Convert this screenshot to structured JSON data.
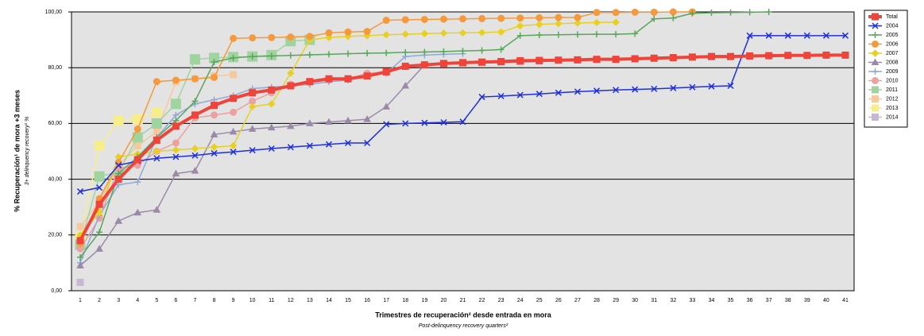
{
  "chart_data": {
    "type": "line",
    "y_label": "% Recuperación¹ de mora +3 meses",
    "y_label_en": "3+ delinquency recovery¹ %",
    "x_label": "Trimestres de recuperación² desde entrada en mora",
    "x_label_en": "Post-delinquency recovery quarters²",
    "categories": [
      "1",
      "2",
      "3",
      "4",
      "5",
      "6",
      "7",
      "8",
      "9",
      "10",
      "11",
      "12",
      "13",
      "14",
      "15",
      "16",
      "17",
      "18",
      "19",
      "20",
      "21",
      "22",
      "23",
      "24",
      "25",
      "26",
      "27",
      "28",
      "29",
      "30",
      "31",
      "32",
      "33",
      "34",
      "35",
      "36",
      "37",
      "38",
      "39",
      "40",
      "41"
    ],
    "ylim": [
      0,
      100
    ],
    "yticks": [
      {
        "value": 0,
        "label": "0,00"
      },
      {
        "value": 20,
        "label": "20,00"
      },
      {
        "value": 40,
        "label": "40,00"
      },
      {
        "value": 60,
        "label": "60,00"
      },
      {
        "value": 80,
        "label": "80,00"
      },
      {
        "value": 100,
        "label": "100,00"
      }
    ],
    "grid": true,
    "legend": "right",
    "series": [
      {
        "name": "Total",
        "color": "#f0433a",
        "marker": "square",
        "width": 4,
        "values": [
          18,
          31,
          40,
          47,
          54,
          59,
          63,
          66.5,
          69,
          71,
          72,
          73.5,
          75,
          76,
          76,
          77,
          78.5,
          80.5,
          81,
          81.5,
          81.8,
          82,
          82.2,
          82.5,
          82.6,
          82.7,
          82.8,
          83,
          83,
          83.2,
          83.4,
          83.6,
          83.8,
          84,
          84,
          84.2,
          84.3,
          84.4,
          84.4,
          84.5,
          84.5
        ]
      },
      {
        "name": "2004",
        "color": "#1f2fe0",
        "marker": "x",
        "width": 1.5,
        "values": [
          35.6,
          37,
          45,
          46.5,
          47.5,
          48,
          48.5,
          49.3,
          49.8,
          50.4,
          51,
          51.5,
          52,
          52.5,
          53,
          53,
          59.7,
          60,
          60.2,
          60.4,
          60.6,
          69.5,
          69.8,
          70.2,
          70.6,
          71,
          71.4,
          71.7,
          72,
          72.2,
          72.4,
          72.7,
          73,
          73.3,
          73.5,
          91.5,
          91.5,
          91.5,
          91.5,
          91.5,
          91.5
        ]
      },
      {
        "name": "2005",
        "color": "#5aa65a",
        "marker": "plus",
        "width": 1.5,
        "values": [
          12,
          21,
          42,
          48,
          55,
          61,
          68,
          82,
          83.5,
          84,
          84.2,
          84.4,
          84.6,
          84.8,
          85,
          85.2,
          85.3,
          85.5,
          85.6,
          85.8,
          86,
          86.2,
          86.5,
          91.5,
          91.7,
          91.8,
          91.9,
          92,
          92,
          92.2,
          97.5,
          97.8,
          99.5,
          99.7,
          99.8,
          99.9,
          100,
          null,
          null,
          null,
          null
        ]
      },
      {
        "name": "2006",
        "color": "#f59a3c",
        "marker": "circle",
        "width": 1.5,
        "values": [
          17,
          33,
          46,
          58,
          75,
          75.5,
          76,
          76.5,
          90.5,
          90.7,
          90.8,
          91,
          91.2,
          92.5,
          92.8,
          93,
          97,
          97.2,
          97.3,
          97.4,
          97.5,
          97.6,
          97.7,
          97.8,
          97.9,
          98,
          98,
          99.8,
          99.8,
          99.9,
          99.9,
          100,
          100,
          null,
          null,
          null,
          null,
          null,
          null,
          null,
          null
        ]
      },
      {
        "name": "2007",
        "color": "#e8d020",
        "marker": "diamond",
        "width": 1.5,
        "values": [
          20,
          28,
          48,
          49,
          50,
          50.5,
          51,
          51.5,
          52,
          66,
          67,
          78,
          90,
          90.8,
          91.2,
          91.5,
          91.8,
          92,
          92.2,
          92.4,
          92.5,
          92.6,
          92.8,
          95,
          95.5,
          95.8,
          96,
          96.2,
          96.3,
          null,
          null,
          null,
          null,
          null,
          null,
          null,
          null,
          null,
          null,
          null,
          null
        ]
      },
      {
        "name": "2008",
        "color": "#9a8aa8",
        "marker": "triangle",
        "width": 1.5,
        "values": [
          9,
          15,
          25,
          28,
          29,
          42,
          43,
          56,
          57,
          58,
          58.5,
          59,
          60,
          60.5,
          61,
          61.5,
          66,
          73.5,
          81,
          81.3,
          81.5,
          81.7,
          81.8,
          82,
          82.2,
          null,
          null,
          null,
          null,
          null,
          null,
          null,
          null,
          null,
          null,
          null,
          null,
          null,
          null,
          null,
          null
        ]
      },
      {
        "name": "2009",
        "color": "#8fa8d8",
        "marker": "plus",
        "width": 1.5,
        "values": [
          10,
          27,
          38,
          39,
          55,
          63,
          67,
          68.5,
          70,
          72.5,
          73,
          73.5,
          74,
          75,
          75.5,
          77,
          78,
          84,
          84.5,
          84.8,
          85,
          null,
          null,
          null,
          null,
          null,
          null,
          null,
          null,
          null,
          null,
          null,
          null,
          null,
          null,
          null,
          null,
          null,
          null,
          null,
          null
        ]
      },
      {
        "name": "2010",
        "color": "#eda0a0",
        "marker": "circle",
        "width": 1.5,
        "values": [
          15,
          26,
          44,
          45,
          50,
          53,
          62,
          63,
          64,
          68,
          71,
          74,
          75,
          75.5,
          76,
          78,
          78.5,
          null,
          null,
          null,
          null,
          null,
          null,
          null,
          null,
          null,
          null,
          null,
          null,
          null,
          null,
          null,
          null,
          null,
          null,
          null,
          null,
          null,
          null,
          null,
          null
        ]
      },
      {
        "name": "2011",
        "color": "#9fd49f",
        "marker": "bigsquare",
        "width": 1.5,
        "values": [
          16.5,
          41,
          42.5,
          55,
          60,
          67,
          83,
          83.5,
          83.8,
          84,
          84.5,
          89.5,
          90,
          null,
          null,
          null,
          null,
          null,
          null,
          null,
          null,
          null,
          null,
          null,
          null,
          null,
          null,
          null,
          null,
          null,
          null,
          null,
          null,
          null,
          null,
          null,
          null,
          null,
          null,
          null,
          null
        ]
      },
      {
        "name": "2012",
        "color": "#f7c89a",
        "marker": "square",
        "width": 1.5,
        "values": [
          23,
          32,
          45,
          52,
          57,
          75,
          76,
          77,
          77.5,
          null,
          null,
          null,
          null,
          null,
          null,
          null,
          null,
          null,
          null,
          null,
          null,
          null,
          null,
          null,
          null,
          null,
          null,
          null,
          null,
          null,
          null,
          null,
          null,
          null,
          null,
          null,
          null,
          null,
          null,
          null,
          null
        ]
      },
      {
        "name": "2013",
        "color": "#f7ee8a",
        "marker": "bigsquare",
        "width": 1.5,
        "values": [
          19,
          52,
          61,
          61.5,
          64,
          null,
          null,
          null,
          null,
          null,
          null,
          null,
          null,
          null,
          null,
          null,
          null,
          null,
          null,
          null,
          null,
          null,
          null,
          null,
          null,
          null,
          null,
          null,
          null,
          null,
          null,
          null,
          null,
          null,
          null,
          null,
          null,
          null,
          null,
          null,
          null
        ]
      },
      {
        "name": "2014",
        "color": "#c9b6d6",
        "marker": "square",
        "width": 1.5,
        "values": [
          3,
          null,
          null,
          null,
          null,
          null,
          null,
          null,
          null,
          null,
          null,
          null,
          null,
          null,
          null,
          null,
          null,
          null,
          null,
          null,
          null,
          null,
          null,
          null,
          null,
          null,
          null,
          null,
          null,
          null,
          null,
          null,
          null,
          null,
          null,
          null,
          null,
          null,
          null,
          null,
          null
        ]
      }
    ]
  }
}
